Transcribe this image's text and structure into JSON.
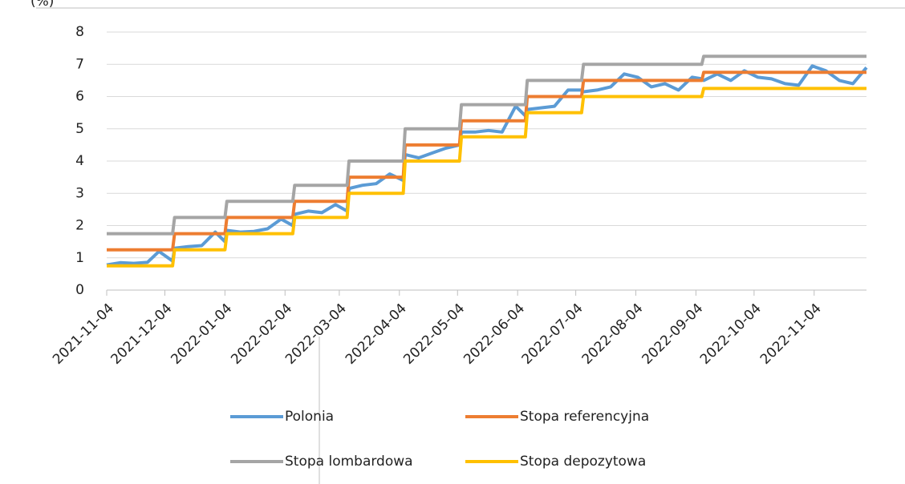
{
  "chart_data": {
    "type": "line",
    "y_label": "(%)",
    "x": [
      "2021-11-04",
      "2021-11-11",
      "2021-11-18",
      "2021-11-25",
      "2021-12-01",
      "2021-12-08",
      "2021-12-09",
      "2021-12-16",
      "2021-12-23",
      "2021-12-30",
      "2022-01-04",
      "2022-01-05",
      "2022-01-12",
      "2022-01-19",
      "2022-01-26",
      "2022-02-02",
      "2022-02-08",
      "2022-02-09",
      "2022-02-16",
      "2022-02-23",
      "2022-03-02",
      "2022-03-08",
      "2022-03-09",
      "2022-03-16",
      "2022-03-23",
      "2022-03-30",
      "2022-04-06",
      "2022-04-07",
      "2022-04-14",
      "2022-04-21",
      "2022-04-28",
      "2022-05-05",
      "2022-05-06",
      "2022-05-13",
      "2022-05-20",
      "2022-05-27",
      "2022-06-03",
      "2022-06-08",
      "2022-06-09",
      "2022-06-16",
      "2022-06-23",
      "2022-06-30",
      "2022-07-07",
      "2022-07-08",
      "2022-07-15",
      "2022-07-22",
      "2022-07-29",
      "2022-08-05",
      "2022-08-12",
      "2022-08-19",
      "2022-08-26",
      "2022-09-02",
      "2022-09-07",
      "2022-09-08",
      "2022-09-15",
      "2022-09-22",
      "2022-09-29",
      "2022-10-06",
      "2022-10-13",
      "2022-10-20",
      "2022-10-27",
      "2022-11-03",
      "2022-11-10",
      "2022-11-17",
      "2022-11-24",
      "2022-12-01"
    ],
    "series": [
      {
        "name": "Polonia",
        "color": "#5b9bd5",
        "values": [
          0.78,
          0.85,
          0.83,
          0.86,
          1.2,
          0.9,
          1.3,
          1.35,
          1.38,
          1.8,
          1.5,
          1.85,
          1.8,
          1.82,
          1.9,
          2.2,
          2.0,
          2.35,
          2.45,
          2.4,
          2.65,
          2.45,
          3.15,
          3.25,
          3.3,
          3.6,
          3.4,
          4.2,
          4.1,
          4.25,
          4.4,
          4.5,
          4.9,
          4.9,
          4.95,
          4.9,
          5.7,
          5.4,
          5.6,
          5.65,
          5.7,
          6.2,
          6.2,
          6.15,
          6.2,
          6.3,
          6.7,
          6.6,
          6.3,
          6.4,
          6.2,
          6.6,
          6.55,
          6.5,
          6.7,
          6.5,
          6.8,
          6.6,
          6.55,
          6.4,
          6.35,
          6.95,
          6.8,
          6.5,
          6.4,
          6.9
        ]
      },
      {
        "name": "Stopa referencyjna",
        "color": "#ed7d31",
        "values": [
          1.25,
          1.25,
          1.25,
          1.25,
          1.25,
          1.25,
          1.75,
          1.75,
          1.75,
          1.75,
          1.75,
          2.25,
          2.25,
          2.25,
          2.25,
          2.25,
          2.25,
          2.75,
          2.75,
          2.75,
          2.75,
          2.75,
          3.5,
          3.5,
          3.5,
          3.5,
          3.5,
          4.5,
          4.5,
          4.5,
          4.5,
          4.5,
          5.25,
          5.25,
          5.25,
          5.25,
          5.25,
          5.25,
          6,
          6,
          6,
          6,
          6,
          6.5,
          6.5,
          6.5,
          6.5,
          6.5,
          6.5,
          6.5,
          6.5,
          6.5,
          6.5,
          6.75,
          6.75,
          6.75,
          6.75,
          6.75,
          6.75,
          6.75,
          6.75,
          6.75,
          6.75,
          6.75,
          6.75,
          6.75
        ]
      },
      {
        "name": "Stopa lombardowa",
        "color": "#a5a5a5",
        "values": [
          1.75,
          1.75,
          1.75,
          1.75,
          1.75,
          1.75,
          2.25,
          2.25,
          2.25,
          2.25,
          2.25,
          2.75,
          2.75,
          2.75,
          2.75,
          2.75,
          2.75,
          3.25,
          3.25,
          3.25,
          3.25,
          3.25,
          4,
          4,
          4,
          4,
          4,
          5,
          5,
          5,
          5,
          5,
          5.75,
          5.75,
          5.75,
          5.75,
          5.75,
          5.75,
          6.5,
          6.5,
          6.5,
          6.5,
          6.5,
          7,
          7,
          7,
          7,
          7,
          7,
          7,
          7,
          7,
          7,
          7.25,
          7.25,
          7.25,
          7.25,
          7.25,
          7.25,
          7.25,
          7.25,
          7.25,
          7.25,
          7.25,
          7.25,
          7.25
        ]
      },
      {
        "name": "Stopa depozytowa",
        "color": "#ffc000",
        "values": [
          0.75,
          0.75,
          0.75,
          0.75,
          0.75,
          0.75,
          1.25,
          1.25,
          1.25,
          1.25,
          1.25,
          1.75,
          1.75,
          1.75,
          1.75,
          1.75,
          1.75,
          2.25,
          2.25,
          2.25,
          2.25,
          2.25,
          3,
          3,
          3,
          3,
          3,
          4,
          4,
          4,
          4,
          4,
          4.75,
          4.75,
          4.75,
          4.75,
          4.75,
          4.75,
          5.5,
          5.5,
          5.5,
          5.5,
          5.5,
          6,
          6,
          6,
          6,
          6,
          6,
          6,
          6,
          6,
          6,
          6.25,
          6.25,
          6.25,
          6.25,
          6.25,
          6.25,
          6.25,
          6.25,
          6.25,
          6.25,
          6.25,
          6.25,
          6.25
        ]
      }
    ],
    "xlim": [
      "2021-11-04",
      "2022-12-01"
    ],
    "xticks": [
      "2021-11-04",
      "2021-12-04",
      "2022-01-04",
      "2022-02-04",
      "2022-03-04",
      "2022-04-04",
      "2022-05-04",
      "2022-06-04",
      "2022-07-04",
      "2022-08-04",
      "2022-09-04",
      "2022-10-04",
      "2022-11-04"
    ],
    "ylim": [
      0,
      8
    ],
    "yticks": [
      0,
      1,
      2,
      3,
      4,
      5,
      6,
      7,
      8
    ],
    "grid": true
  }
}
